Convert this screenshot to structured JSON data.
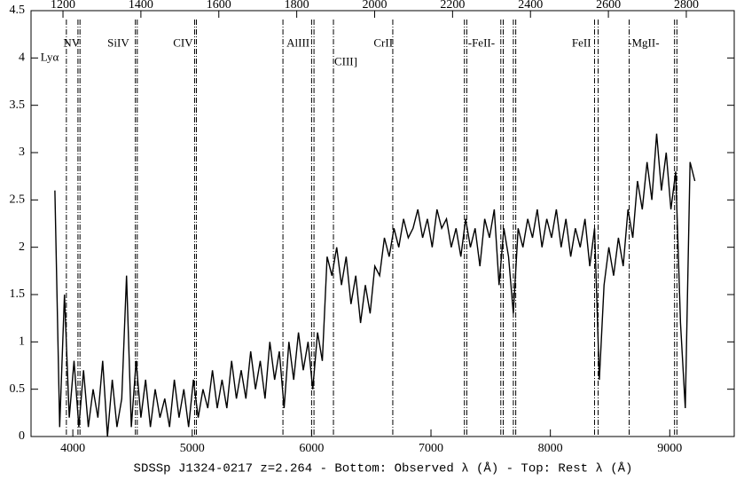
{
  "chart_data": {
    "type": "line",
    "xlabel": "SDSSp J1324-0217 z=2.264 - Bottom: Observed λ (Å) - Top: Rest λ (Å)",
    "xlim": [
      3650,
      9540
    ],
    "xticks": [
      4000,
      5000,
      6000,
      7000,
      8000,
      9000
    ],
    "x2lim": [
      1118,
      2923
    ],
    "x2ticks": [
      1200,
      1400,
      1600,
      1800,
      2000,
      2200,
      2400,
      2600,
      2800
    ],
    "ylim": [
      0,
      4.5
    ],
    "yticks": [
      0,
      0.5,
      1,
      1.5,
      2,
      2.5,
      3,
      3.5,
      4,
      4.5
    ],
    "color": "#000000",
    "x": [
      3850,
      3890,
      3930,
      3970,
      4010,
      4050,
      4090,
      4130,
      4170,
      4210,
      4250,
      4290,
      4330,
      4370,
      4410,
      4450,
      4490,
      4530,
      4570,
      4610,
      4650,
      4690,
      4730,
      4770,
      4810,
      4850,
      4890,
      4930,
      4970,
      5010,
      5050,
      5090,
      5130,
      5170,
      5210,
      5250,
      5290,
      5330,
      5370,
      5410,
      5450,
      5490,
      5530,
      5570,
      5610,
      5650,
      5690,
      5730,
      5770,
      5810,
      5850,
      5890,
      5930,
      5970,
      6010,
      6050,
      6090,
      6130,
      6170,
      6210,
      6250,
      6290,
      6330,
      6370,
      6410,
      6450,
      6490,
      6530,
      6570,
      6610,
      6650,
      6690,
      6730,
      6770,
      6810,
      6850,
      6890,
      6930,
      6970,
      7010,
      7050,
      7090,
      7130,
      7170,
      7210,
      7250,
      7290,
      7330,
      7370,
      7410,
      7450,
      7490,
      7530,
      7570,
      7610,
      7650,
      7690,
      7730,
      7770,
      7810,
      7850,
      7890,
      7930,
      7970,
      8010,
      8050,
      8090,
      8130,
      8170,
      8210,
      8250,
      8290,
      8330,
      8370,
      8410,
      8450,
      8490,
      8530,
      8570,
      8610,
      8650,
      8690,
      8730,
      8770,
      8810,
      8850,
      8890,
      8930,
      8970,
      9010,
      9050,
      9090,
      9130,
      9170,
      9210
    ],
    "values": [
      2.6,
      0.1,
      1.5,
      0.2,
      0.8,
      0.1,
      0.7,
      0.1,
      0.5,
      0.2,
      0.8,
      0.0,
      0.6,
      0.1,
      0.4,
      1.7,
      0.1,
      0.8,
      0.2,
      0.6,
      0.1,
      0.5,
      0.2,
      0.4,
      0.1,
      0.6,
      0.2,
      0.5,
      0.1,
      0.6,
      0.2,
      0.5,
      0.3,
      0.7,
      0.3,
      0.6,
      0.3,
      0.8,
      0.4,
      0.7,
      0.4,
      0.9,
      0.5,
      0.8,
      0.4,
      1.0,
      0.6,
      0.9,
      0.3,
      1.0,
      0.6,
      1.1,
      0.7,
      1.0,
      0.5,
      1.1,
      0.8,
      1.9,
      1.7,
      2.0,
      1.6,
      1.9,
      1.4,
      1.7,
      1.2,
      1.6,
      1.3,
      1.8,
      1.7,
      2.1,
      1.9,
      2.2,
      2.0,
      2.3,
      2.1,
      2.2,
      2.4,
      2.1,
      2.3,
      2.0,
      2.4,
      2.2,
      2.3,
      2.0,
      2.2,
      1.9,
      2.3,
      2.0,
      2.2,
      1.8,
      2.3,
      2.1,
      2.4,
      1.6,
      2.2,
      1.9,
      1.3,
      2.2,
      2.0,
      2.3,
      2.1,
      2.4,
      2.0,
      2.3,
      2.1,
      2.4,
      2.0,
      2.3,
      1.9,
      2.2,
      2.0,
      2.3,
      1.8,
      2.2,
      0.6,
      1.6,
      2.0,
      1.7,
      2.1,
      1.8,
      2.4,
      2.1,
      2.7,
      2.4,
      2.9,
      2.5,
      3.2,
      2.6,
      3.0,
      2.4,
      2.8,
      1.2,
      0.3,
      2.9,
      2.7
    ],
    "lines": [
      3946,
      4043,
      4060,
      4524,
      4540,
      5020,
      5035,
      5760,
      6000,
      6020,
      6183,
      6680,
      7280,
      7300,
      7585,
      7605,
      7690,
      7710,
      8370,
      8400,
      8660,
      9040,
      9060
    ],
    "annotations": [
      {
        "text": "Lyα",
        "x": 3730,
        "y": 4.0
      },
      {
        "text": "NV",
        "x": 3920,
        "y": 4.15
      },
      {
        "text": "SiIV",
        "x": 4290,
        "y": 4.15
      },
      {
        "text": "CIV",
        "x": 4840,
        "y": 4.15
      },
      {
        "text": "AlIII",
        "x": 5790,
        "y": 4.15
      },
      {
        "text": "CIII]",
        "x": 6190,
        "y": 3.95
      },
      {
        "text": "CrII",
        "x": 6520,
        "y": 4.15
      },
      {
        "text": "-FeII-",
        "x": 7310,
        "y": 4.15
      },
      {
        "text": "FeII",
        "x": 8180,
        "y": 4.15
      },
      {
        "text": "-MgII-",
        "x": 8650,
        "y": 4.15
      }
    ]
  }
}
